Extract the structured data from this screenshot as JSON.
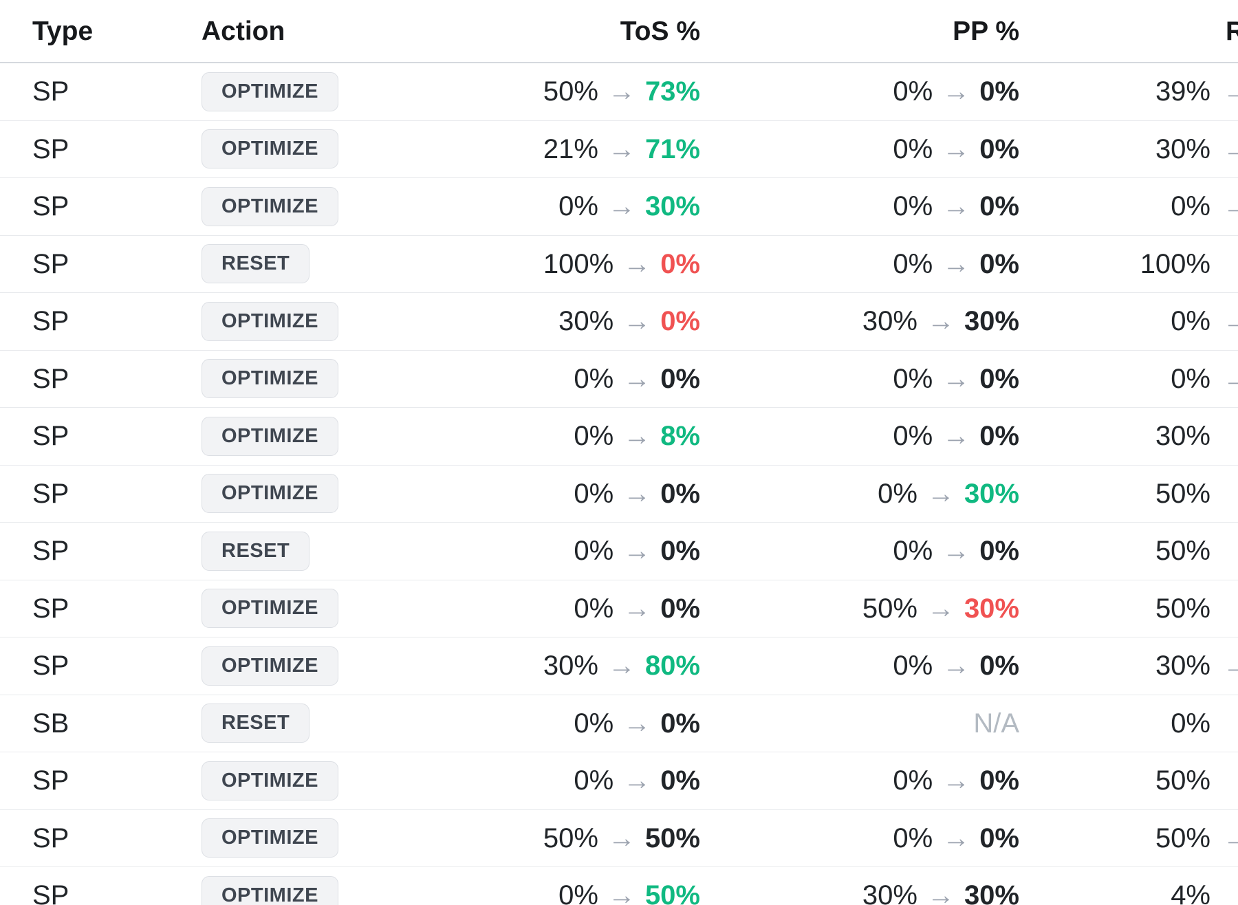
{
  "palette": {
    "positive": "#10b981",
    "negative": "#f05252",
    "neutral_bold": "#212529",
    "arrow": "#9ca3af",
    "na": "#b3bac2",
    "text": "#212529",
    "header_text": "#17191c",
    "row_border": "#e8eaed",
    "header_border": "#d5d9de",
    "button_bg": "#f2f3f5",
    "button_border": "#dcdfe4",
    "button_text": "#3f4650"
  },
  "arrow_glyph": "→",
  "na_label": "N/A",
  "header": {
    "type": "Type",
    "action": "Action",
    "tos": "ToS %",
    "pp": "PP %",
    "last_partial": "R"
  },
  "rows": [
    {
      "type": "SP",
      "action": "OPTIMIZE",
      "tos": {
        "from": "50%",
        "to": "73%",
        "trend": "up"
      },
      "pp": {
        "from": "0%",
        "to": "0%",
        "trend": "same"
      },
      "last": {
        "value": "39%",
        "arrow": true
      }
    },
    {
      "type": "SP",
      "action": "OPTIMIZE",
      "tos": {
        "from": "21%",
        "to": "71%",
        "trend": "up"
      },
      "pp": {
        "from": "0%",
        "to": "0%",
        "trend": "same"
      },
      "last": {
        "value": "30%",
        "arrow": true
      }
    },
    {
      "type": "SP",
      "action": "OPTIMIZE",
      "tos": {
        "from": "0%",
        "to": "30%",
        "trend": "up"
      },
      "pp": {
        "from": "0%",
        "to": "0%",
        "trend": "same"
      },
      "last": {
        "value": "0%",
        "arrow": true
      }
    },
    {
      "type": "SP",
      "action": "RESET",
      "tos": {
        "from": "100%",
        "to": "0%",
        "trend": "down"
      },
      "pp": {
        "from": "0%",
        "to": "0%",
        "trend": "same"
      },
      "last": {
        "value": "100%",
        "arrow": false
      }
    },
    {
      "type": "SP",
      "action": "OPTIMIZE",
      "tos": {
        "from": "30%",
        "to": "0%",
        "trend": "down"
      },
      "pp": {
        "from": "30%",
        "to": "30%",
        "trend": "same"
      },
      "last": {
        "value": "0%",
        "arrow": true
      }
    },
    {
      "type": "SP",
      "action": "OPTIMIZE",
      "tos": {
        "from": "0%",
        "to": "0%",
        "trend": "same"
      },
      "pp": {
        "from": "0%",
        "to": "0%",
        "trend": "same"
      },
      "last": {
        "value": "0%",
        "arrow": true
      }
    },
    {
      "type": "SP",
      "action": "OPTIMIZE",
      "tos": {
        "from": "0%",
        "to": "8%",
        "trend": "up"
      },
      "pp": {
        "from": "0%",
        "to": "0%",
        "trend": "same"
      },
      "last": {
        "value": "30%",
        "arrow": false
      }
    },
    {
      "type": "SP",
      "action": "OPTIMIZE",
      "tos": {
        "from": "0%",
        "to": "0%",
        "trend": "same"
      },
      "pp": {
        "from": "0%",
        "to": "30%",
        "trend": "up"
      },
      "last": {
        "value": "50%",
        "arrow": false
      }
    },
    {
      "type": "SP",
      "action": "RESET",
      "tos": {
        "from": "0%",
        "to": "0%",
        "trend": "same"
      },
      "pp": {
        "from": "0%",
        "to": "0%",
        "trend": "same"
      },
      "last": {
        "value": "50%",
        "arrow": false
      }
    },
    {
      "type": "SP",
      "action": "OPTIMIZE",
      "tos": {
        "from": "0%",
        "to": "0%",
        "trend": "same"
      },
      "pp": {
        "from": "50%",
        "to": "30%",
        "trend": "down"
      },
      "last": {
        "value": "50%",
        "arrow": false
      }
    },
    {
      "type": "SP",
      "action": "OPTIMIZE",
      "tos": {
        "from": "30%",
        "to": "80%",
        "trend": "up"
      },
      "pp": {
        "from": "0%",
        "to": "0%",
        "trend": "same"
      },
      "last": {
        "value": "30%",
        "arrow": true
      }
    },
    {
      "type": "SB",
      "action": "RESET",
      "tos": {
        "from": "0%",
        "to": "0%",
        "trend": "same"
      },
      "pp": {
        "na": true
      },
      "last": {
        "value": "0%",
        "arrow": false
      }
    },
    {
      "type": "SP",
      "action": "OPTIMIZE",
      "tos": {
        "from": "0%",
        "to": "0%",
        "trend": "same"
      },
      "pp": {
        "from": "0%",
        "to": "0%",
        "trend": "same"
      },
      "last": {
        "value": "50%",
        "arrow": false
      }
    },
    {
      "type": "SP",
      "action": "OPTIMIZE",
      "tos": {
        "from": "50%",
        "to": "50%",
        "trend": "same"
      },
      "pp": {
        "from": "0%",
        "to": "0%",
        "trend": "same"
      },
      "last": {
        "value": "50%",
        "arrow": true
      }
    },
    {
      "type": "SP",
      "action": "OPTIMIZE",
      "tos": {
        "from": "0%",
        "to": "50%",
        "trend": "up"
      },
      "pp": {
        "from": "30%",
        "to": "30%",
        "trend": "same"
      },
      "last": {
        "value": "4%",
        "arrow": false
      }
    }
  ]
}
